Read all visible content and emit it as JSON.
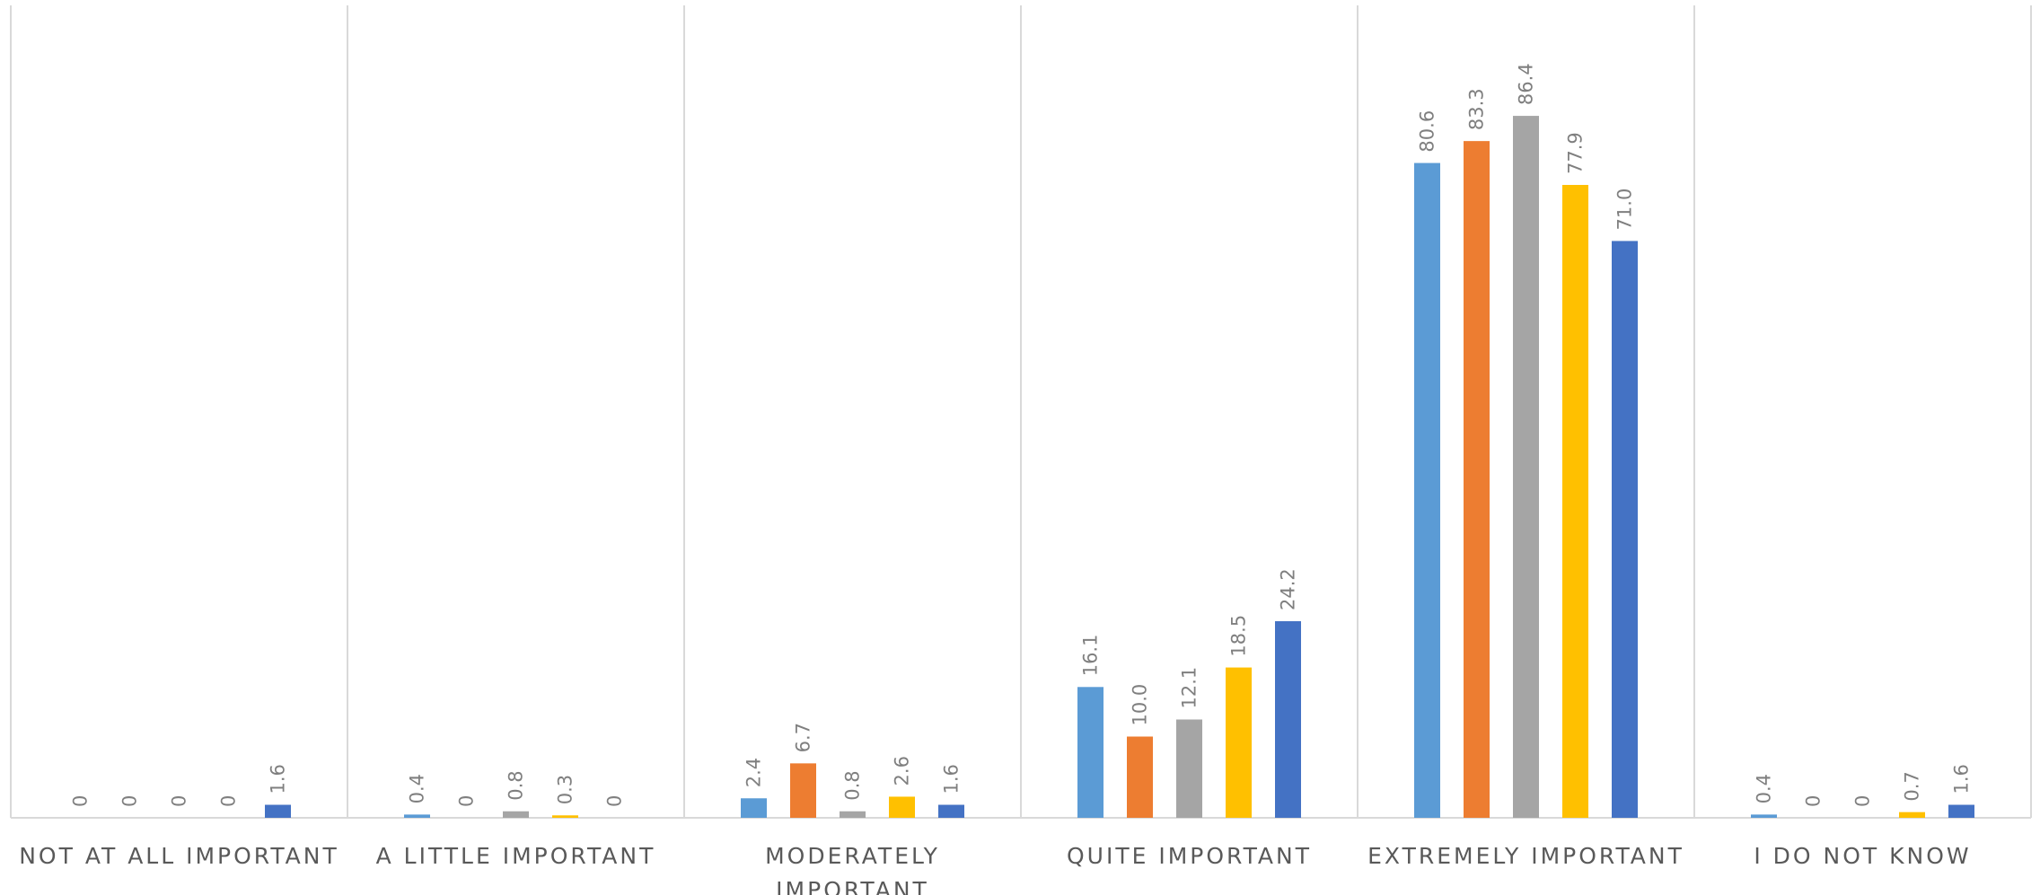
{
  "chart_data": {
    "type": "bar",
    "title": "",
    "xlabel": "",
    "ylabel": "",
    "ylim": [
      0,
      90
    ],
    "grid": "vertical separators between categories",
    "legend": "none",
    "categories": [
      [
        "NOT AT ALL IMPORTANT"
      ],
      [
        "A LITTLE IMPORTANT"
      ],
      [
        "MODERATELY",
        "IMPORTANT"
      ],
      [
        "QUITE IMPORTANT"
      ],
      [
        "EXTREMELY IMPORTANT"
      ],
      [
        "I DO NOT KNOW"
      ]
    ],
    "series": [
      {
        "color": "#5b9bd5",
        "values": [
          0,
          0.4,
          2.4,
          16.1,
          80.6,
          0.4
        ],
        "labels": [
          "0",
          "0.4",
          "2.4",
          "16.1",
          "80.6",
          "0.4"
        ]
      },
      {
        "color": "#ed7d31",
        "values": [
          0,
          0,
          6.7,
          10.0,
          83.3,
          0
        ],
        "labels": [
          "0",
          "0",
          "6.7",
          "10.0",
          "83.3",
          "0"
        ]
      },
      {
        "color": "#a5a5a5",
        "values": [
          0,
          0.8,
          0.8,
          12.1,
          86.4,
          0
        ],
        "labels": [
          "0",
          "0.8",
          "0.8",
          "12.1",
          "86.4",
          "0"
        ]
      },
      {
        "color": "#ffc000",
        "values": [
          0,
          0.3,
          2.6,
          18.5,
          77.9,
          0.7
        ],
        "labels": [
          "0",
          "0.3",
          "2.6",
          "18.5",
          "77.9",
          "0.7"
        ]
      },
      {
        "color": "#4472c4",
        "values": [
          1.6,
          0,
          1.6,
          24.2,
          71.0,
          1.6
        ],
        "labels": [
          "1.6",
          "0",
          "1.6",
          "24.2",
          "71.0",
          "1.6"
        ]
      }
    ]
  }
}
